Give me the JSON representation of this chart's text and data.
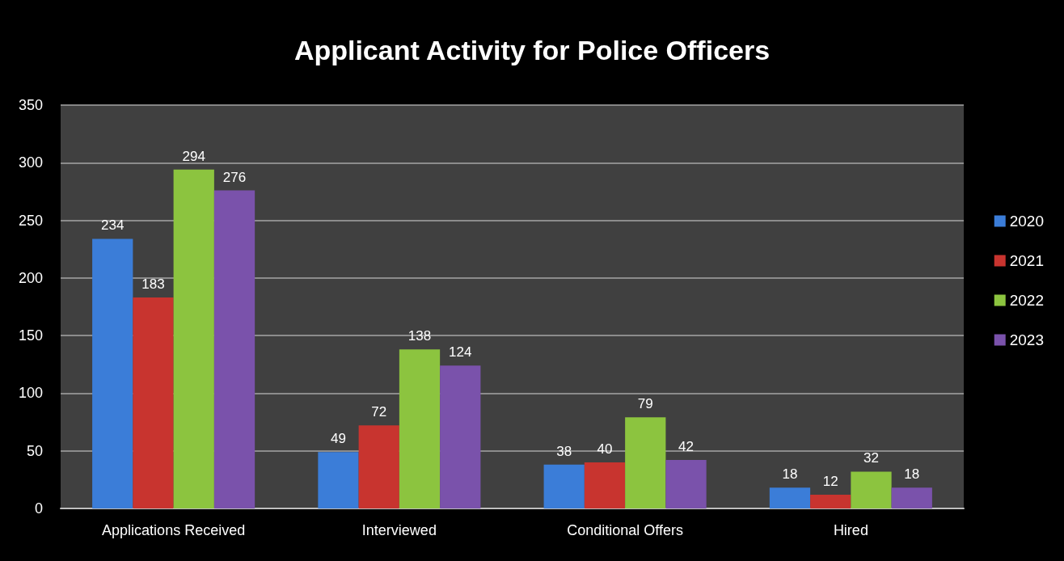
{
  "chart_data": {
    "type": "bar",
    "title": "Applicant Activity for Police Officers",
    "categories": [
      "Applications Received",
      "Interviewed",
      "Conditional Offers",
      "Hired"
    ],
    "series": [
      {
        "name": "2020",
        "color": "#3b7dd8",
        "values": [
          234,
          49,
          38,
          18
        ]
      },
      {
        "name": "2021",
        "color": "#c8342f",
        "values": [
          183,
          72,
          40,
          12
        ]
      },
      {
        "name": "2022",
        "color": "#8cc43f",
        "values": [
          294,
          138,
          79,
          32
        ]
      },
      {
        "name": "2023",
        "color": "#7a52ab",
        "values": [
          276,
          124,
          42,
          18
        ]
      }
    ],
    "ylim": [
      0,
      350
    ],
    "yticks": [
      0,
      50,
      100,
      150,
      200,
      250,
      300,
      350
    ],
    "grid": "y",
    "legend": "right",
    "data_labels": true
  }
}
